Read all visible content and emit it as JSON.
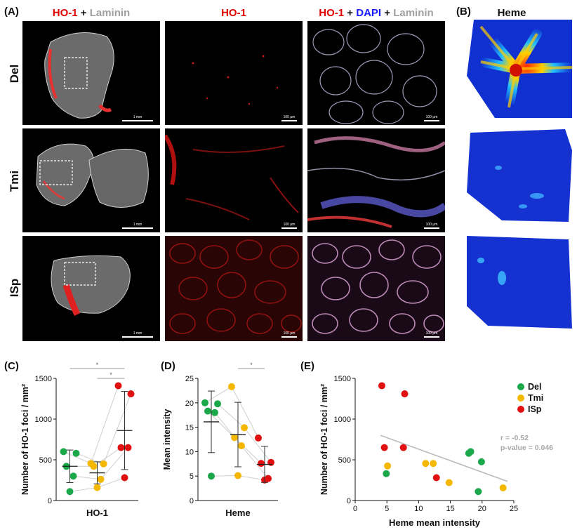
{
  "panels": {
    "A": "(A)",
    "B": "(B)",
    "C": "(C)",
    "D": "(D)",
    "E": "(E)"
  },
  "headers": {
    "col1": [
      {
        "text": "HO-1",
        "color": "#e00000"
      },
      {
        "text": " + ",
        "color": "#111111"
      },
      {
        "text": "Laminin",
        "color": "#a0a0a0"
      }
    ],
    "col2": [
      {
        "text": "HO-1",
        "color": "#e00000"
      }
    ],
    "col3": [
      {
        "text": "HO-1",
        "color": "#e00000"
      },
      {
        "text": " + ",
        "color": "#111111"
      },
      {
        "text": "DAPI",
        "color": "#1a1aff"
      },
      {
        "text": " + ",
        "color": "#111111"
      },
      {
        "text": "Laminin",
        "color": "#a0a0a0"
      }
    ],
    "heme": "Heme"
  },
  "rows": [
    "Del",
    "Tmi",
    "ISp"
  ],
  "scalebars": {
    "col1": "1 mm",
    "col2": "100 μm",
    "col3": "100 μm"
  },
  "chart_data": [
    {
      "id": "C",
      "type": "scatter",
      "ylabel": "Number of HO-1 foci / mm²",
      "xlabel": "HO-1",
      "ylim": [
        0,
        1500
      ],
      "yticks": [
        0,
        500,
        1000,
        1500
      ],
      "groups": [
        "Del",
        "Tmi",
        "ISp"
      ],
      "colors": {
        "Del": "#1aa84a",
        "Tmi": "#f5b800",
        "ISp": "#e01010"
      },
      "series": [
        {
          "name": "Del",
          "values": [
            600,
            580,
            420,
            300,
            110
          ],
          "mean": 420,
          "sd": 200
        },
        {
          "name": "Tmi",
          "values": [
            455,
            450,
            420,
            260,
            160
          ],
          "mean": 340,
          "sd": 135
        },
        {
          "name": "ISp",
          "values": [
            1410,
            1310,
            650,
            650,
            280
          ],
          "mean": 860,
          "sd": 480
        }
      ],
      "significance": [
        {
          "from": "Del",
          "to": "ISp",
          "label": "*"
        },
        {
          "from": "Tmi",
          "to": "ISp",
          "label": "*"
        }
      ]
    },
    {
      "id": "D",
      "type": "scatter",
      "ylabel": "Mean intensity",
      "xlabel": "Heme",
      "ylim": [
        0,
        25
      ],
      "yticks": [
        0,
        5,
        10,
        15,
        20,
        25
      ],
      "groups": [
        "Del",
        "Tmi",
        "ISp"
      ],
      "colors": {
        "Del": "#1aa84a",
        "Tmi": "#f5b800",
        "ISp": "#e01010"
      },
      "series": [
        {
          "name": "Del",
          "values": [
            20.0,
            19.8,
            18.3,
            18.0,
            5.0
          ],
          "mean": 16.1,
          "sd": 6.3
        },
        {
          "name": "Tmi",
          "values": [
            23.3,
            14.9,
            12.9,
            11.2,
            5.1
          ],
          "mean": 13.5,
          "sd": 6.6
        },
        {
          "name": "ISp",
          "values": [
            12.8,
            7.8,
            7.6,
            4.5,
            4.2
          ],
          "mean": 7.4,
          "sd": 3.7
        }
      ],
      "significance": [
        {
          "from": "Tmi",
          "to": "ISp",
          "label": "*"
        }
      ]
    },
    {
      "id": "E",
      "type": "scatter",
      "ylabel": "Number of HO-1 foci / mm²",
      "xlabel": "Heme mean intensity",
      "xlim": [
        0,
        25
      ],
      "ylim": [
        0,
        1500
      ],
      "xticks": [
        0,
        5,
        10,
        15,
        20,
        25
      ],
      "yticks": [
        0,
        500,
        1000,
        1500
      ],
      "legend": [
        "Del",
        "Tmi",
        "ISp"
      ],
      "colors": {
        "Del": "#1aa84a",
        "Tmi": "#f5b800",
        "ISp": "#e01010"
      },
      "series": [
        {
          "name": "Del",
          "points": [
            [
              4.9,
              330
            ],
            [
              17.9,
              580
            ],
            [
              18.2,
              600
            ],
            [
              19.4,
              110
            ],
            [
              19.9,
              475
            ]
          ]
        },
        {
          "name": "Tmi",
          "points": [
            [
              5.1,
              425
            ],
            [
              11.1,
              455
            ],
            [
              12.3,
              455
            ],
            [
              14.8,
              220
            ],
            [
              23.3,
              155
            ]
          ]
        },
        {
          "name": "ISp",
          "points": [
            [
              4.2,
              1410
            ],
            [
              4.6,
              650
            ],
            [
              7.6,
              650
            ],
            [
              7.8,
              1310
            ],
            [
              12.8,
              280
            ]
          ]
        }
      ],
      "regression": {
        "x0": 4,
        "y0": 800,
        "x1": 24,
        "y1": 235
      },
      "annotation": [
        "r = -0.52",
        "p-value = 0.046"
      ]
    }
  ]
}
